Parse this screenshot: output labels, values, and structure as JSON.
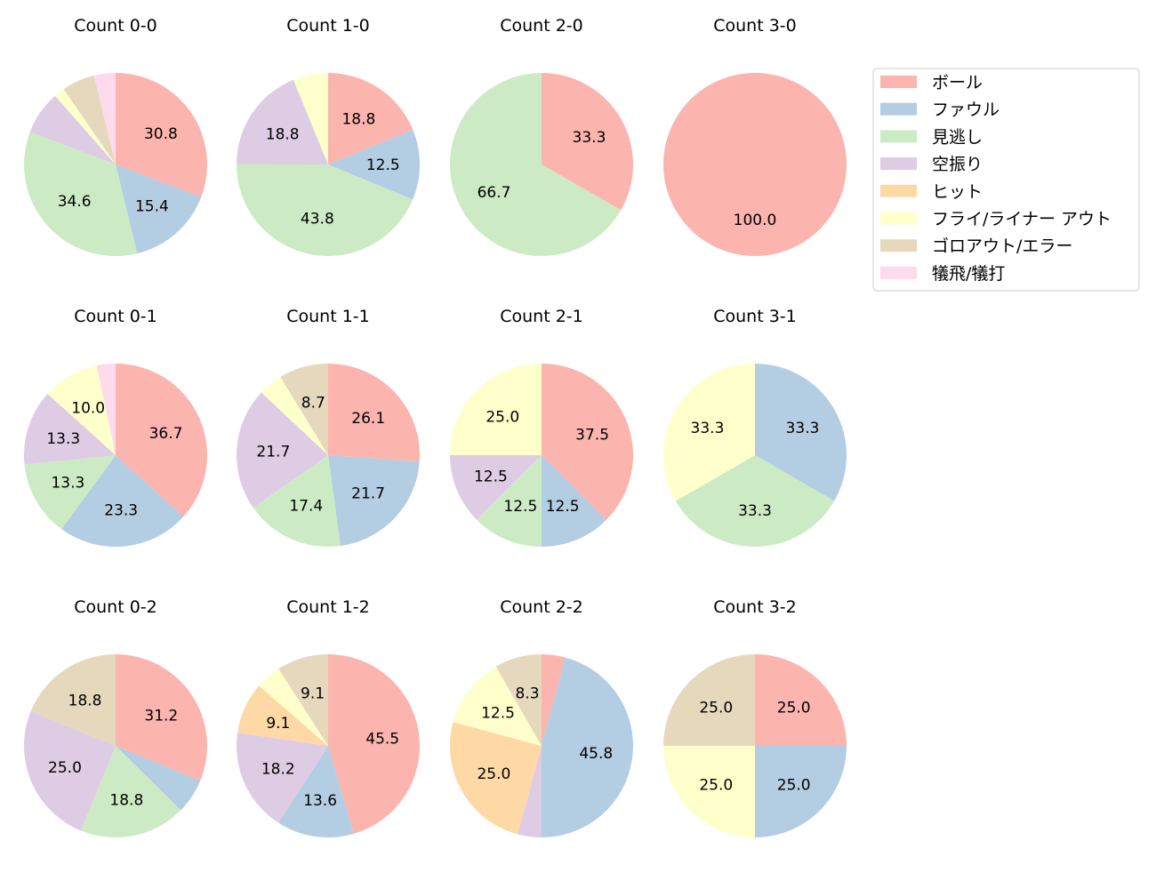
{
  "chart_data": {
    "type": "pie",
    "start_angle": 90,
    "direction": "clockwise",
    "legend_placement": "upper-right",
    "categories": [
      "ボール",
      "ファウル",
      "見逃し",
      "空振り",
      "ヒット",
      "フライ/ライナー アウト",
      "ゴロアウト/エラー",
      "犠飛/犠打"
    ],
    "colors": [
      "#fbb4ae",
      "#b3cde3",
      "#ccebc5",
      "#decbe4",
      "#fed9a6",
      "#ffffcc",
      "#e5d8bd",
      "#fddaec"
    ],
    "charts": [
      {
        "title": "Count 0-0",
        "values": [
          30.8,
          15.4,
          34.6,
          7.7,
          0,
          1.9,
          5.8,
          3.8
        ]
      },
      {
        "title": "Count 1-0",
        "values": [
          18.8,
          12.5,
          43.8,
          18.8,
          0,
          6.2,
          0,
          0
        ]
      },
      {
        "title": "Count 2-0",
        "values": [
          33.3,
          0,
          66.7,
          0,
          0,
          0,
          0,
          0
        ]
      },
      {
        "title": "Count 3-0",
        "values": [
          100.0,
          0,
          0,
          0,
          0,
          0,
          0,
          0
        ]
      },
      {
        "title": "Count 0-1",
        "values": [
          36.7,
          23.3,
          13.3,
          13.3,
          0,
          10.0,
          0,
          3.3
        ]
      },
      {
        "title": "Count 1-1",
        "values": [
          26.1,
          21.7,
          17.4,
          21.7,
          0,
          4.3,
          8.7,
          0
        ]
      },
      {
        "title": "Count 2-1",
        "values": [
          37.5,
          12.5,
          12.5,
          12.5,
          0,
          25.0,
          0,
          0
        ]
      },
      {
        "title": "Count 3-1",
        "values": [
          0,
          33.3,
          33.3,
          0,
          0,
          33.3,
          0,
          0
        ]
      },
      {
        "title": "Count 0-2",
        "values": [
          31.2,
          6.2,
          18.8,
          25.0,
          0,
          0,
          18.8,
          0
        ]
      },
      {
        "title": "Count 1-2",
        "values": [
          45.5,
          13.6,
          0,
          18.2,
          9.1,
          4.5,
          9.1,
          0
        ]
      },
      {
        "title": "Count 2-2",
        "values": [
          4.2,
          45.8,
          0,
          4.2,
          25.0,
          12.5,
          8.3,
          0
        ]
      },
      {
        "title": "Count 3-2",
        "values": [
          25.0,
          25.0,
          0,
          0,
          0,
          25.0,
          25.0,
          0
        ]
      }
    ]
  }
}
